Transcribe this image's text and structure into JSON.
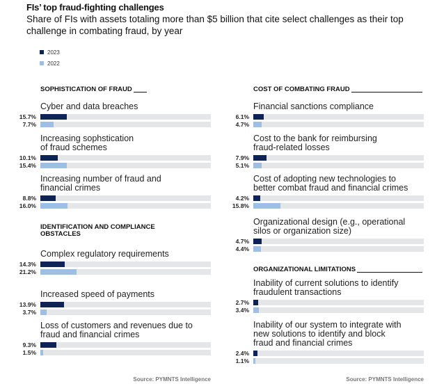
{
  "header": {
    "title": "FIs’ top fraud-fighting challenges",
    "subtitle": "Share of FIs with assets totaling more than $5 billion that cite select challenges as their top challenge in combating fraud, by year"
  },
  "colors": {
    "y2023": "#0e2456",
    "y2022": "#9dbfe6",
    "track": "#e5e6e8"
  },
  "chart_data": {
    "type": "bar",
    "orientation": "horizontal",
    "title": "FIs’ top fraud-fighting challenges",
    "unit": "%",
    "xlim": [
      0,
      100
    ],
    "legend": [
      {
        "name": "2023"
      },
      {
        "name": "2022"
      }
    ],
    "legend_placement": "top-left",
    "columns": [
      {
        "sections": [
          {
            "title": "SOPHISTICATION OF FRAUD",
            "items": [
              {
                "label": "Cyber and data breaches",
                "lines": [
                  "Cyber and data breaches"
                ],
                "v2023": 15.7,
                "v2022": 7.7
              },
              {
                "label": "Increasing sophstication of fraud schemes",
                "lines": [
                  "Increasing sophstication",
                  "of fraud schemes"
                ],
                "v2023": 10.1,
                "v2022": 15.4
              },
              {
                "label": "Increasing number of fraud and financial crimes",
                "lines": [
                  "Increasing number of fraud and",
                  "financial crimes"
                ],
                "v2023": 8.8,
                "v2022": 16.0
              }
            ]
          },
          {
            "title": "IDENTIFICATION AND COMPLIANCE OBSTACLES",
            "title_lines": [
              "IDENTIFICATION AND COMPLIANCE",
              "OBSTACLES"
            ],
            "items": [
              {
                "label": "Complex regulatory requirements",
                "lines": [
                  "Complex regulatory requirements"
                ],
                "v2023": 14.3,
                "v2022": 21.2
              },
              {
                "label": "Increased speed of payments",
                "lines": [
                  "Increased speed of payments"
                ],
                "v2023": 13.9,
                "v2022": 3.7
              },
              {
                "label": "Loss of customers and revenues due to fraud and financial crimes",
                "lines": [
                  "Loss of customers and revenues due to",
                  "fraud and financial crimes"
                ],
                "v2023": 9.3,
                "v2022": 1.5
              }
            ]
          }
        ],
        "source": "Source: PYMNTS Intelligence"
      },
      {
        "sections": [
          {
            "title": "COST OF COMBATING FRAUD",
            "items": [
              {
                "label": "Financial sanctions compliance",
                "lines": [
                  "Financial sanctions compliance"
                ],
                "v2023": 6.1,
                "v2022": 4.7
              },
              {
                "label": "Cost to the bank for reimbursing fraud-related losses",
                "lines": [
                  "Cost to the bank for reimbursing",
                  "fraud-related losses"
                ],
                "v2023": 7.9,
                "v2022": 5.1
              },
              {
                "label": "Cost of adopting new technologies to better combat fraud and financial crimes",
                "lines": [
                  "Cost of adopting new technologies to",
                  "better combat fraud and financial crimes"
                ],
                "v2023": 4.2,
                "v2022": 15.8
              },
              {
                "label": "Organizational design (e.g., operational silos or organization size)",
                "lines": [
                  "Organizational design (e.g., operational",
                  "silos or organization size)"
                ],
                "v2023": 4.7,
                "v2022": 4.4
              }
            ]
          },
          {
            "title": "ORGANIZATIONAL LIMITATIONS",
            "items": [
              {
                "label": "Inability of current solutions to identify fraudulent transactions",
                "lines": [
                  "Inability of current solutions to identify",
                  "fraudulent transactions"
                ],
                "v2023": 2.7,
                "v2022": 3.4
              },
              {
                "label": "Inability of our system to integrate with new solutions to identify and block fraud and financial crimes",
                "lines": [
                  "Inability of our system to integrate with",
                  "new solutions to identify and block",
                  "fraud and financial crimes"
                ],
                "v2023": 2.4,
                "v2022": 1.1
              }
            ]
          }
        ],
        "source": "Source: PYMNTS Intelligence"
      }
    ]
  }
}
